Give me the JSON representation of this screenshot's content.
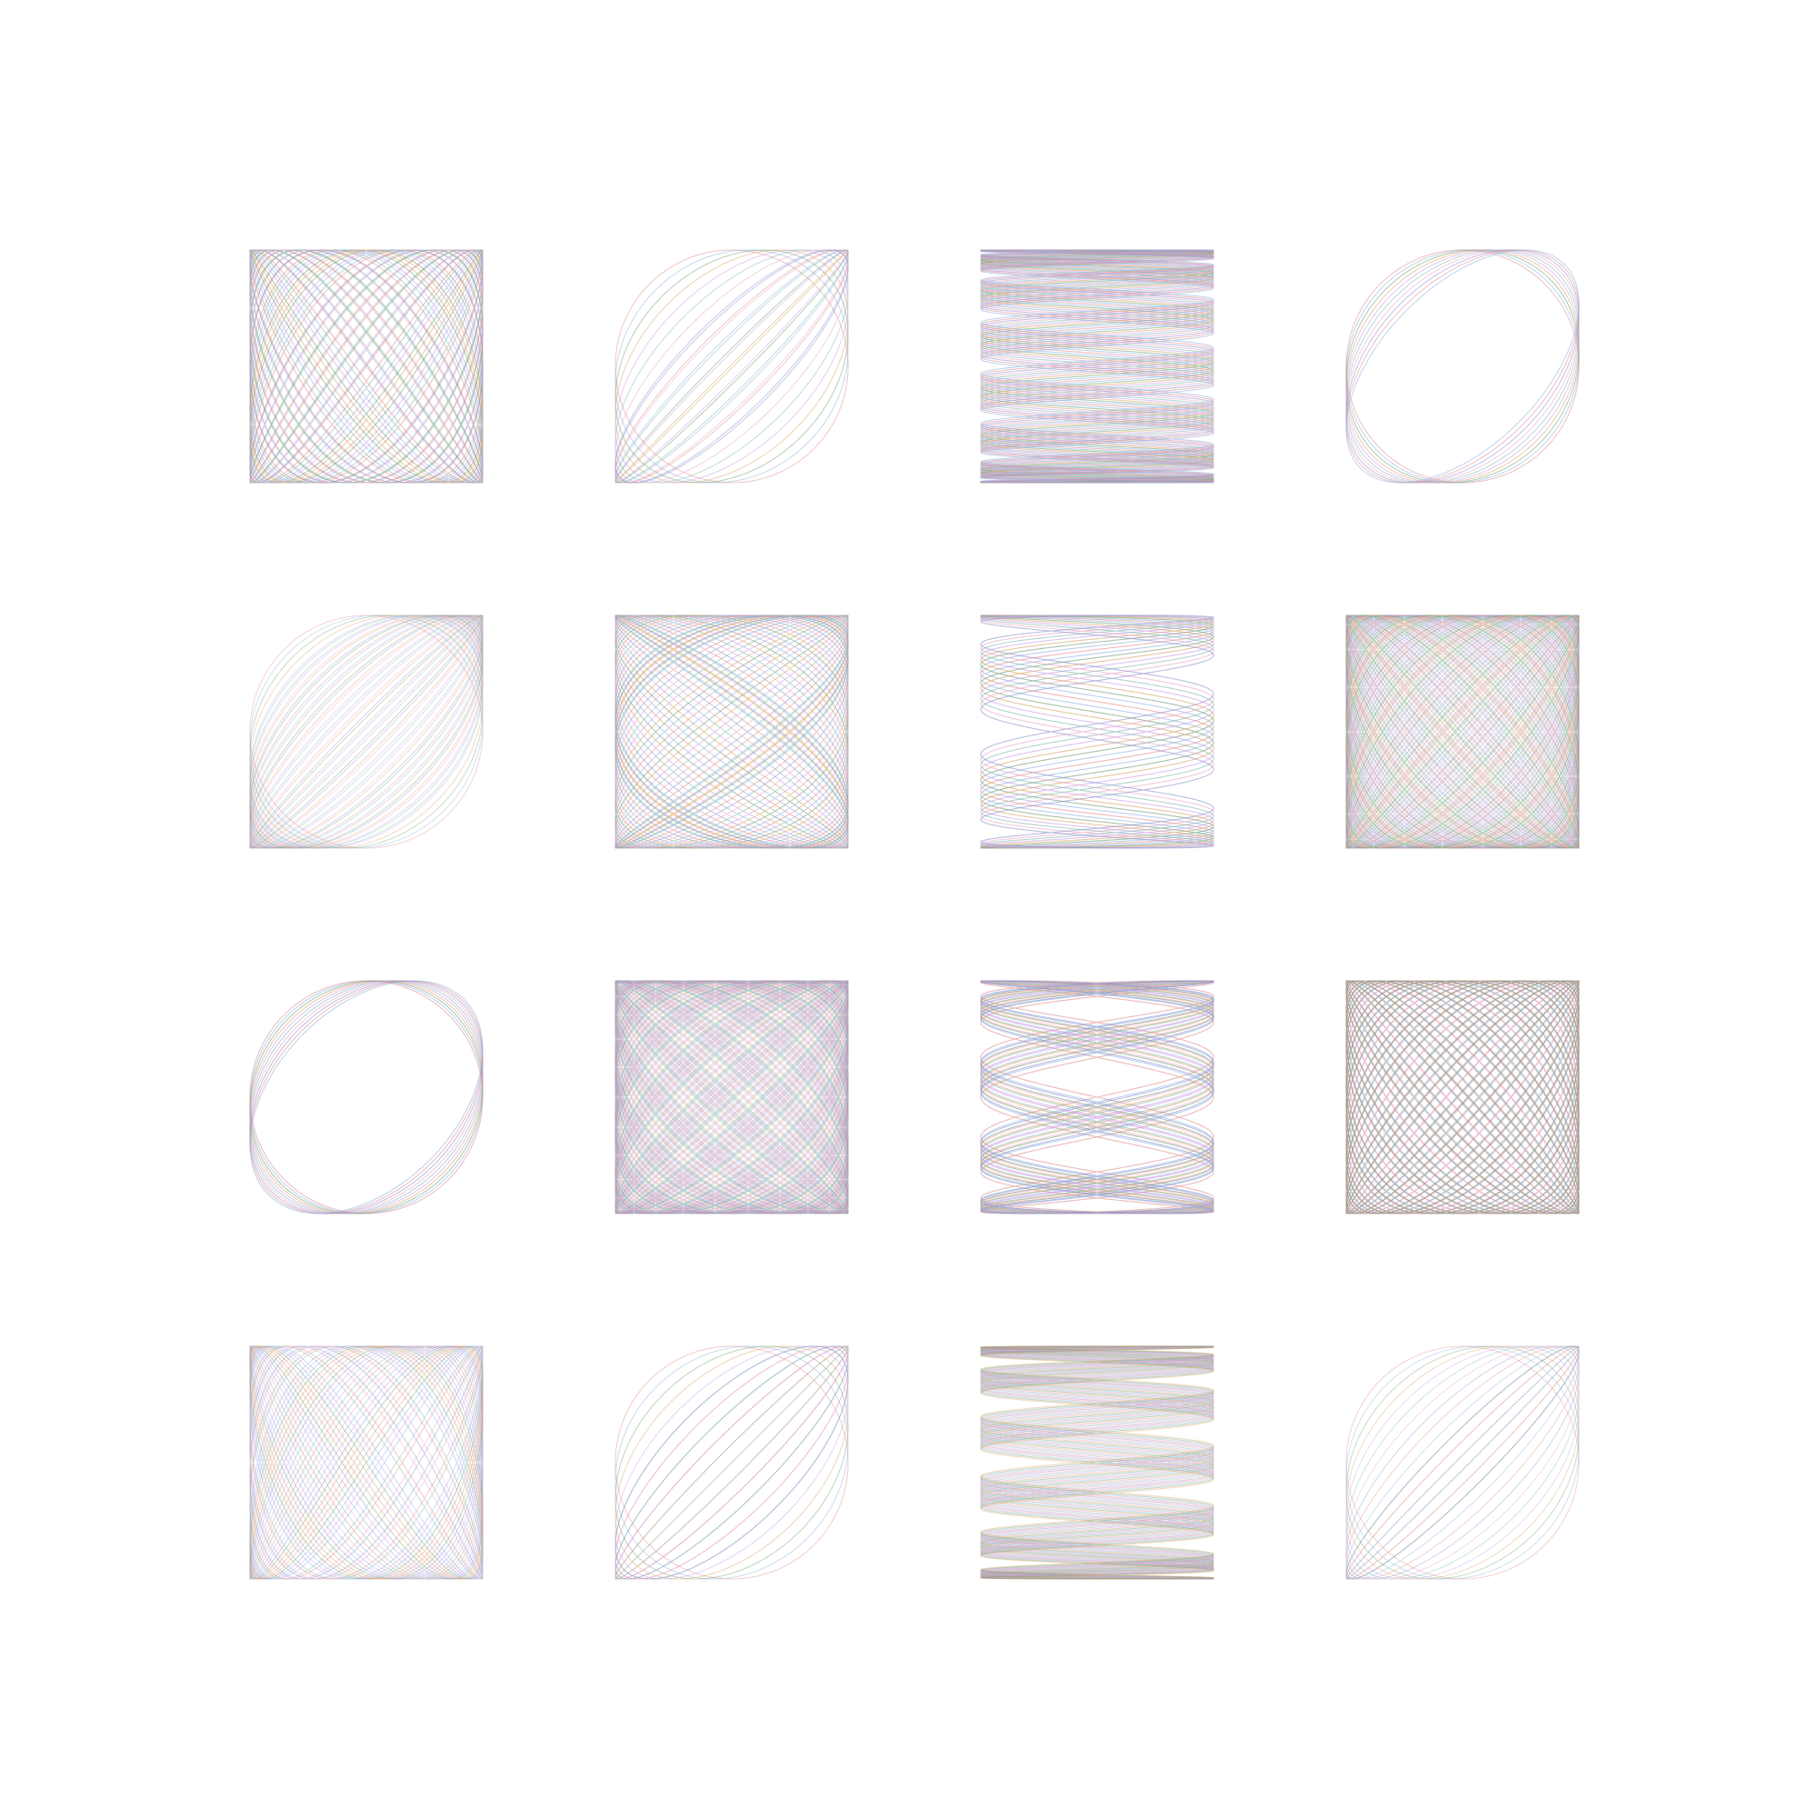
{
  "artwork": {
    "background": "#ffffff",
    "rows": 4,
    "cols": 4,
    "palette": [
      "#e08a8a",
      "#8ab0e0",
      "#6f9a6f",
      "#d7a060",
      "#c79ae6",
      "#7fb7b0",
      "#e6a3c4",
      "#8f8fd0"
    ],
    "tiles": [
      {
        "a": 3,
        "b": 4,
        "phase_step": 0.035,
        "curves": 14,
        "opacity": 0.5
      },
      {
        "a": 5,
        "b": 5,
        "phase_step": 0.045,
        "curves": 16,
        "opacity": 0.45
      },
      {
        "a": 14,
        "b": 1,
        "phase_step": 0.08,
        "curves": 10,
        "opacity": 0.55
      },
      {
        "a": 7,
        "b": 7,
        "phase_step": 0.02,
        "curves": 10,
        "opacity": 0.5
      },
      {
        "a": 1,
        "b": 1,
        "phase_step": 0.03,
        "curves": 30,
        "opacity": 0.35
      },
      {
        "a": 4,
        "b": 3,
        "phase_step": 0.03,
        "curves": 14,
        "opacity": 0.5
      },
      {
        "a": 6,
        "b": 1,
        "phase_step": 0.09,
        "curves": 8,
        "opacity": 0.6
      },
      {
        "a": 8,
        "b": 9,
        "phase_step": 0.03,
        "curves": 12,
        "opacity": 0.4
      },
      {
        "a": 7,
        "b": 7,
        "phase_step": 0.015,
        "curves": 10,
        "opacity": 0.55
      },
      {
        "a": 12,
        "b": 11,
        "phase_step": 0.025,
        "curves": 10,
        "opacity": 0.4
      },
      {
        "a": 9,
        "b": 2,
        "phase_step": 0.06,
        "curves": 8,
        "opacity": 0.6
      },
      {
        "a": 10,
        "b": 11,
        "phase_step": 0.03,
        "curves": 12,
        "opacity": 0.4
      },
      {
        "a": 2,
        "b": 3,
        "phase_step": 0.05,
        "curves": 18,
        "opacity": 0.4
      },
      {
        "a": 6,
        "b": 6,
        "phase_step": 0.05,
        "curves": 16,
        "opacity": 0.4
      },
      {
        "a": 12,
        "b": 1,
        "phase_step": 0.05,
        "curves": 12,
        "opacity": 0.4
      },
      {
        "a": 6,
        "b": 6,
        "phase_step": 0.04,
        "curves": 16,
        "opacity": 0.35
      }
    ]
  }
}
